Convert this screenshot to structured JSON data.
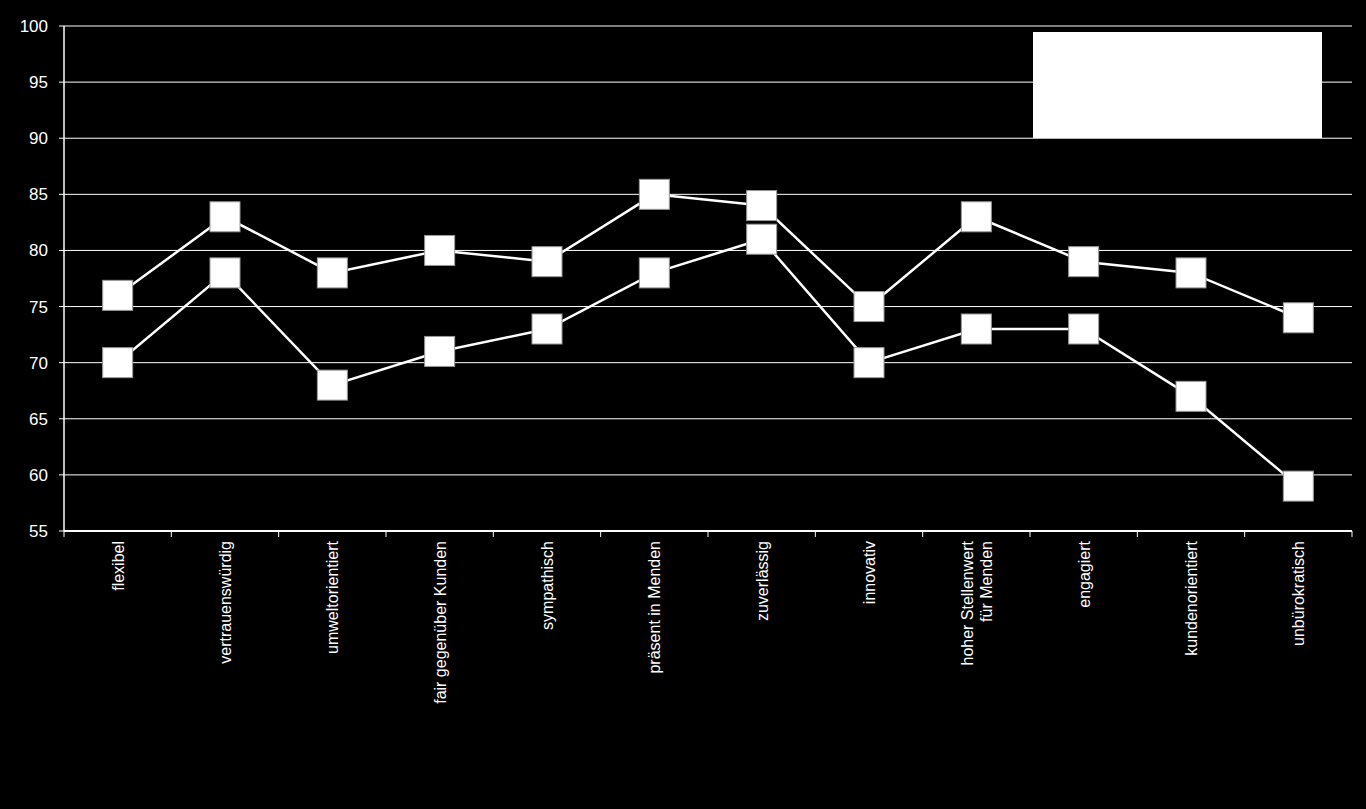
{
  "chart_data": {
    "type": "line",
    "categories": [
      "flexibel",
      "vertrauenswürdig",
      "umweltorientiert",
      "fair gegenüber Kunden",
      "sympathisch",
      "präsent in Menden",
      "zuverlässig",
      "innovativ",
      "hoher Stellenwert\nfür Menden",
      "engagiert",
      "kundenorientiert",
      "unbürokratisch"
    ],
    "series": [
      {
        "color": "#ffffff",
        "marker": "square",
        "line_style": "solid",
        "values": [
          76,
          83,
          78,
          80,
          79,
          85,
          84,
          75,
          83,
          79,
          78,
          74
        ]
      },
      {
        "color": "#ffffff",
        "marker": "square",
        "line_style": "solid",
        "values": [
          70,
          78,
          68,
          71,
          73,
          78,
          81,
          70,
          73,
          73,
          67,
          59
        ]
      }
    ],
    "ylim": [
      55,
      100
    ],
    "yticks": [
      55,
      60,
      65,
      70,
      75,
      80,
      85,
      90,
      95,
      100
    ],
    "grid": true,
    "legend": "upper right"
  }
}
